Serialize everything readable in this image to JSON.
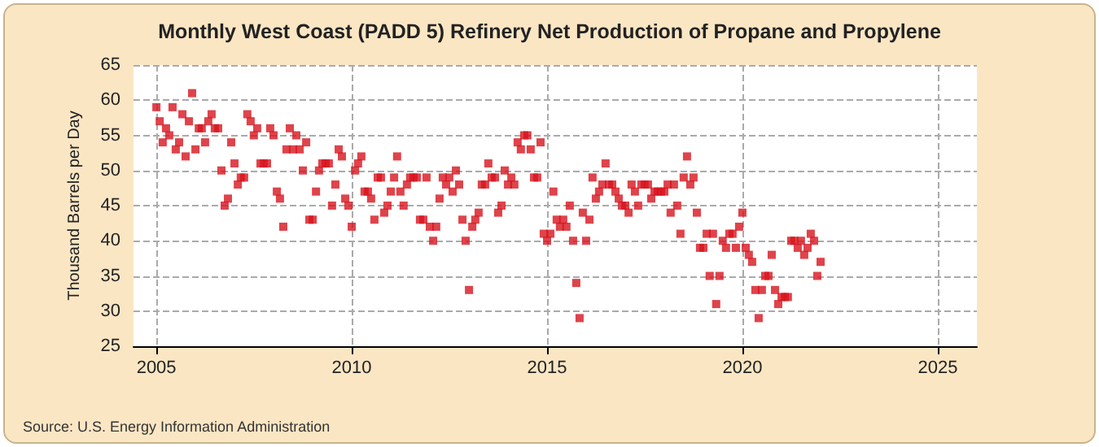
{
  "chart_data": {
    "type": "scatter",
    "title": "Monthly West Coast (PADD 5) Refinery Net Production of Propane and Propylene",
    "ylabel": "Thousand Barrels per Day",
    "annotations": [
      "Source: U.S. Energy Information Administration"
    ],
    "x": [
      "2005-01",
      "2005-02",
      "2005-03",
      "2005-04",
      "2005-05",
      "2005-06",
      "2005-07",
      "2005-08",
      "2005-09",
      "2005-10",
      "2005-11",
      "2005-12",
      "2006-01",
      "2006-02",
      "2006-03",
      "2006-04",
      "2006-05",
      "2006-06",
      "2006-07",
      "2006-08",
      "2006-09",
      "2006-10",
      "2006-11",
      "2006-12",
      "2007-01",
      "2007-02",
      "2007-03",
      "2007-04",
      "2007-05",
      "2007-06",
      "2007-07",
      "2007-08",
      "2007-09",
      "2007-10",
      "2007-11",
      "2007-12",
      "2008-01",
      "2008-02",
      "2008-03",
      "2008-04",
      "2008-05",
      "2008-06",
      "2008-07",
      "2008-08",
      "2008-09",
      "2008-10",
      "2008-11",
      "2008-12",
      "2009-01",
      "2009-02",
      "2009-03",
      "2009-04",
      "2009-05",
      "2009-06",
      "2009-07",
      "2009-08",
      "2009-09",
      "2009-10",
      "2009-11",
      "2009-12",
      "2010-01",
      "2010-02",
      "2010-03",
      "2010-04",
      "2010-05",
      "2010-06",
      "2010-07",
      "2010-08",
      "2010-09",
      "2010-10",
      "2010-11",
      "2010-12",
      "2011-01",
      "2011-02",
      "2011-03",
      "2011-04",
      "2011-05",
      "2011-06",
      "2011-07",
      "2011-08",
      "2011-09",
      "2011-10",
      "2011-11",
      "2011-12",
      "2012-01",
      "2012-02",
      "2012-03",
      "2012-04",
      "2012-05",
      "2012-06",
      "2012-07",
      "2012-08",
      "2012-09",
      "2012-10",
      "2012-11",
      "2012-12",
      "2013-01",
      "2013-02",
      "2013-03",
      "2013-04",
      "2013-05",
      "2013-06",
      "2013-07",
      "2013-08",
      "2013-09",
      "2013-10",
      "2013-11",
      "2013-12",
      "2014-01",
      "2014-02",
      "2014-03",
      "2014-04",
      "2014-05",
      "2014-06",
      "2014-07",
      "2014-08",
      "2014-09",
      "2014-10",
      "2014-11",
      "2014-12",
      "2015-01",
      "2015-02",
      "2015-03",
      "2015-04",
      "2015-05",
      "2015-06",
      "2015-07",
      "2015-08",
      "2015-09",
      "2015-10",
      "2015-11",
      "2015-12",
      "2016-01",
      "2016-02",
      "2016-03",
      "2016-04",
      "2016-05",
      "2016-06",
      "2016-07",
      "2016-08",
      "2016-09",
      "2016-10",
      "2016-11",
      "2016-12",
      "2017-01",
      "2017-02",
      "2017-03",
      "2017-04",
      "2017-05",
      "2017-06",
      "2017-07",
      "2017-08",
      "2017-09",
      "2017-10",
      "2017-11",
      "2017-12",
      "2018-01",
      "2018-02",
      "2018-03",
      "2018-04",
      "2018-05",
      "2018-06",
      "2018-07",
      "2018-08",
      "2018-09",
      "2018-10",
      "2018-11",
      "2018-12",
      "2019-01",
      "2019-02",
      "2019-03",
      "2019-04",
      "2019-05",
      "2019-06",
      "2019-07",
      "2019-08",
      "2019-09",
      "2019-10",
      "2019-11",
      "2019-12",
      "2020-01",
      "2020-02",
      "2020-03",
      "2020-04",
      "2020-05",
      "2020-06",
      "2020-07",
      "2020-08",
      "2020-09",
      "2020-10",
      "2020-11",
      "2020-12",
      "2021-01",
      "2021-02",
      "2021-03",
      "2021-04",
      "2021-05",
      "2021-06",
      "2021-07",
      "2021-08",
      "2021-09",
      "2021-10",
      "2021-11",
      "2021-12",
      "2022-01"
    ],
    "values": [
      59,
      57,
      54,
      56,
      55,
      59,
      53,
      54,
      58,
      52,
      57,
      61,
      53,
      56,
      56,
      54,
      57,
      58,
      56,
      56,
      50,
      45,
      46,
      54,
      51,
      48,
      49,
      49,
      58,
      57,
      55,
      56,
      51,
      51,
      51,
      56,
      55,
      47,
      46,
      42,
      53,
      56,
      53,
      55,
      53,
      50,
      54,
      43,
      43,
      47,
      50,
      51,
      51,
      51,
      45,
      48,
      53,
      52,
      46,
      45,
      42,
      50,
      51,
      52,
      47,
      47,
      46,
      43,
      49,
      49,
      44,
      45,
      47,
      49,
      52,
      47,
      45,
      48,
      49,
      49,
      49,
      43,
      43,
      49,
      42,
      40,
      42,
      46,
      49,
      48,
      49,
      47,
      50,
      48,
      43,
      40,
      33,
      42,
      43,
      44,
      48,
      48,
      51,
      49,
      49,
      44,
      45,
      50,
      48,
      49,
      48,
      54,
      53,
      55,
      55,
      53,
      49,
      49,
      54,
      41,
      40,
      41,
      47,
      43,
      42,
      43,
      42,
      45,
      40,
      34,
      29,
      44,
      40,
      43,
      49,
      46,
      47,
      48,
      51,
      48,
      48,
      47,
      46,
      45,
      45,
      44,
      48,
      47,
      45,
      48,
      48,
      48,
      46,
      47,
      47,
      47,
      47,
      48,
      44,
      48,
      45,
      41,
      49,
      52,
      48,
      49,
      44,
      39,
      39,
      41,
      35,
      41,
      31,
      35,
      40,
      39,
      41,
      41,
      39,
      42,
      44,
      39,
      38,
      37,
      33,
      29,
      33,
      35,
      35,
      38,
      33,
      31,
      32,
      32,
      32,
      40,
      40,
      39,
      40,
      38,
      39,
      41,
      40,
      35,
      37
    ],
    "color": "#d7141e",
    "marker": "square",
    "xlim": [
      "2004-06",
      "2026-01"
    ],
    "xticks": [
      "2005",
      "2010",
      "2015",
      "2020",
      "2025"
    ],
    "ylim": [
      25,
      65
    ],
    "yticks": [
      25,
      30,
      35,
      40,
      45,
      50,
      55,
      60,
      65
    ],
    "grid": true
  }
}
